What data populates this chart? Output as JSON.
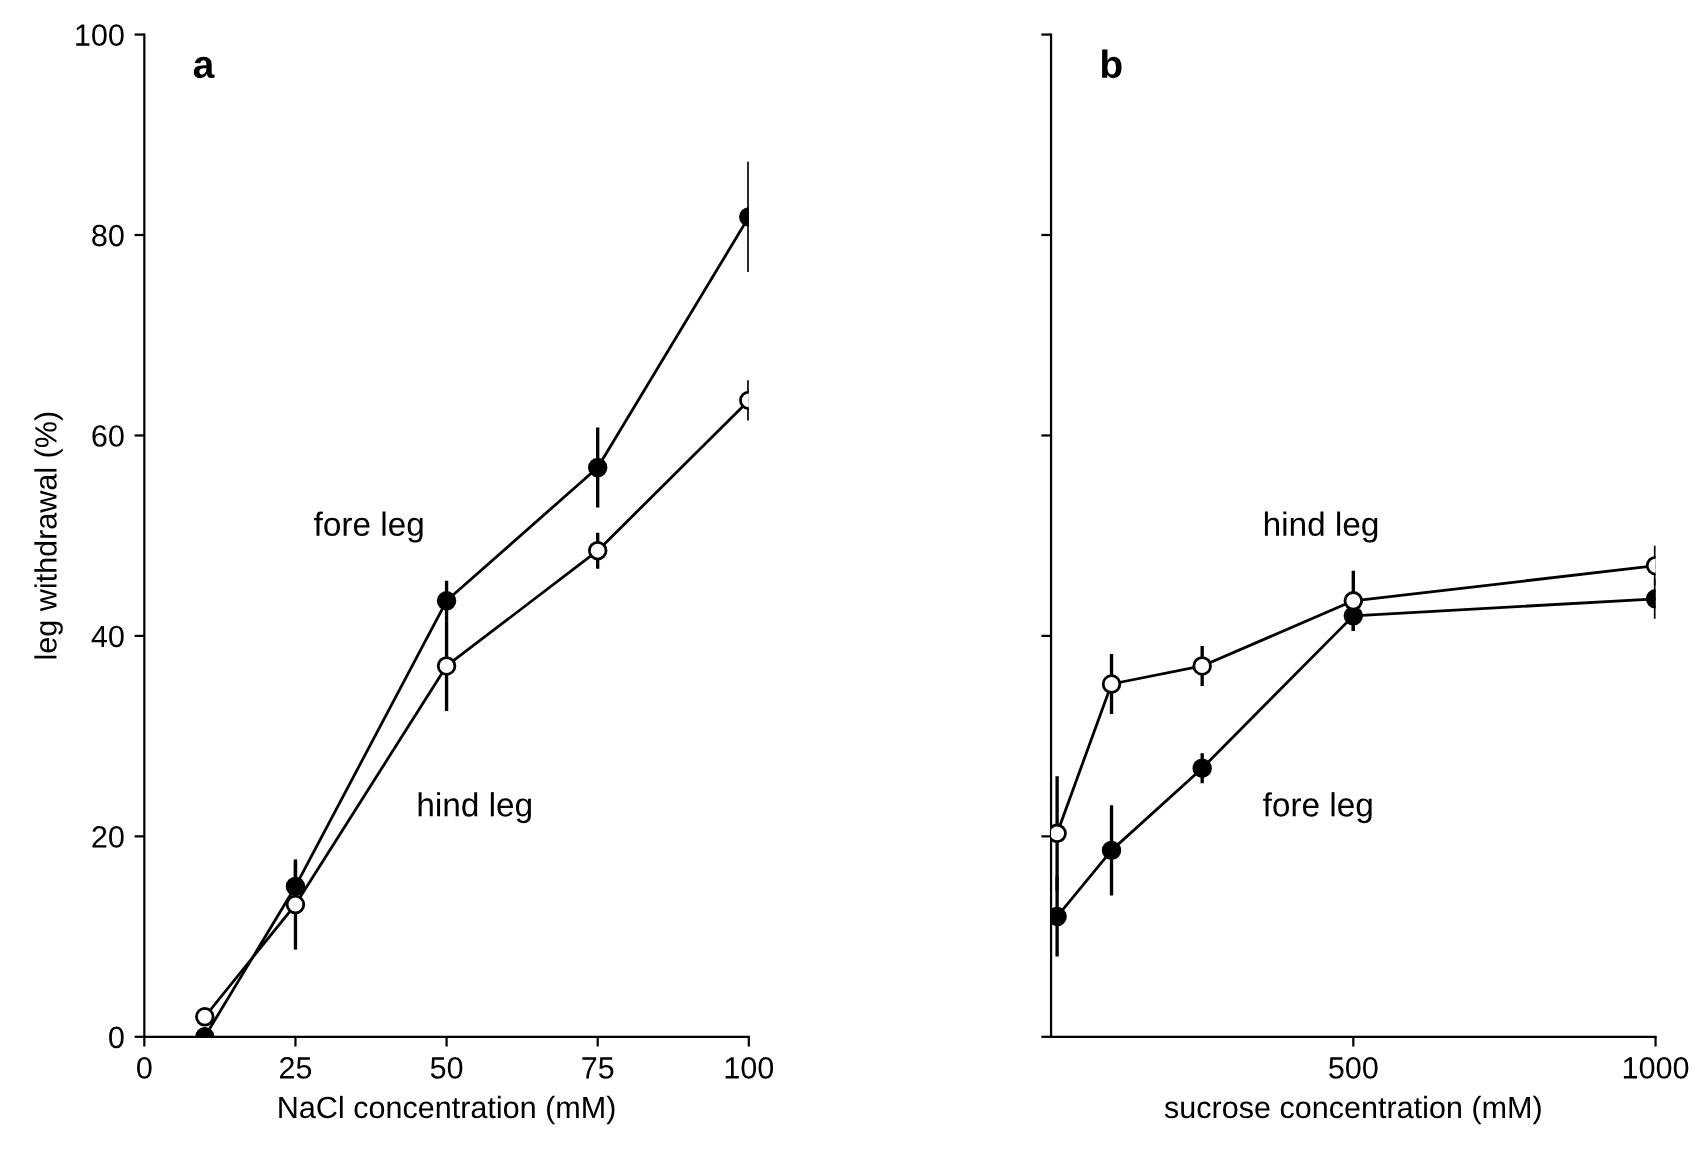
{
  "chart_data": [
    {
      "type": "line",
      "title": "a",
      "xlabel": "NaCl concentration (mM)",
      "ylabel": "leg withdrawal (%)",
      "x": [
        10,
        25,
        50,
        75,
        100
      ],
      "xlim": [
        0,
        100
      ],
      "xticks": [
        0,
        25,
        50,
        75,
        100
      ],
      "ylim": [
        0,
        100
      ],
      "yticks": [
        0,
        20,
        40,
        60,
        80,
        100
      ],
      "marker": "circle",
      "grid": false,
      "legend": false,
      "series": [
        {
          "name": "fore leg",
          "color": "#000000",
          "values": [
            0,
            15,
            43.5,
            56.8,
            81.8
          ],
          "errors": [
            null,
            2.5,
            2,
            4,
            5.5
          ]
        },
        {
          "name": "hind leg",
          "color": "#ffffff",
          "values": [
            2,
            13.2,
            37,
            48.5,
            63.5
          ],
          "errors": [
            null,
            4.5,
            4.5,
            1.8,
            2
          ]
        }
      ]
    },
    {
      "type": "line",
      "title": "b",
      "xlabel": "sucrose concentration (mM)",
      "x": [
        10,
        100,
        250,
        500,
        1000
      ],
      "xlim": [
        0,
        1000
      ],
      "xticks": [
        500,
        1000
      ],
      "ylim": [
        0,
        100
      ],
      "yticks": [
        0,
        20,
        40,
        60,
        80,
        100
      ],
      "tick_labels": "x",
      "marker": "circle",
      "grid": false,
      "legend": false,
      "series": [
        {
          "name": "fore leg",
          "color": "#000000",
          "values": [
            12,
            18.6,
            26.8,
            42,
            43.7
          ],
          "errors": [
            4,
            4.5,
            1.5,
            1.5,
            2
          ]
        },
        {
          "name": "hind leg",
          "color": "#ffffff",
          "values": [
            20.3,
            35.2,
            37,
            43.5,
            47
          ],
          "errors": [
            5.7,
            3,
            2,
            3,
            2
          ]
        }
      ]
    }
  ]
}
